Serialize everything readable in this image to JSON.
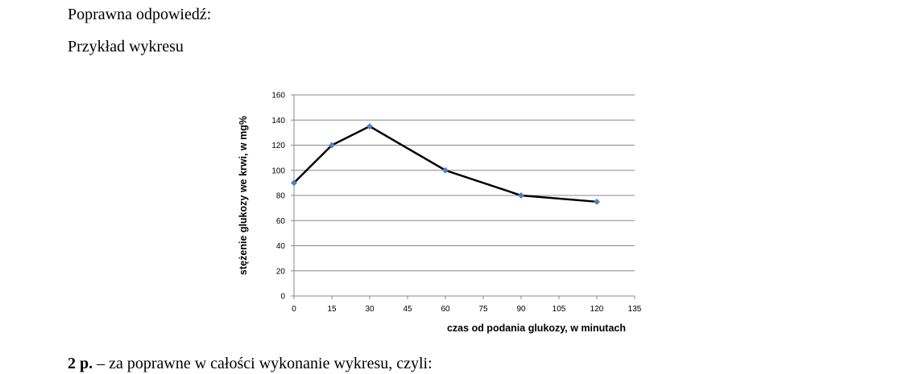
{
  "intro": "Poprawna odpowiedź:",
  "subtitle": "Przykład wykresu",
  "chart_data": {
    "type": "line",
    "xlabel": "czas od podania glukozy, w minutach",
    "ylabel": "stężenie glukozy we krwi, w mg%",
    "x": [
      0,
      15,
      30,
      60,
      90,
      120
    ],
    "series": [
      {
        "values": [
          90,
          120,
          135,
          100,
          80,
          75
        ],
        "color": "#000000",
        "marker_color": "#4f81bd"
      }
    ],
    "xlim": [
      0,
      135
    ],
    "xticks": [
      0,
      15,
      30,
      45,
      60,
      75,
      90,
      105,
      120,
      135
    ],
    "ylim": [
      0,
      160
    ],
    "yticks": [
      0,
      20,
      40,
      60,
      80,
      100,
      120,
      140,
      160
    ],
    "grid": true
  },
  "footer": {
    "bold": "2 p.",
    "text": "– za poprawne w całości wykonanie wykresu, czyli:"
  }
}
